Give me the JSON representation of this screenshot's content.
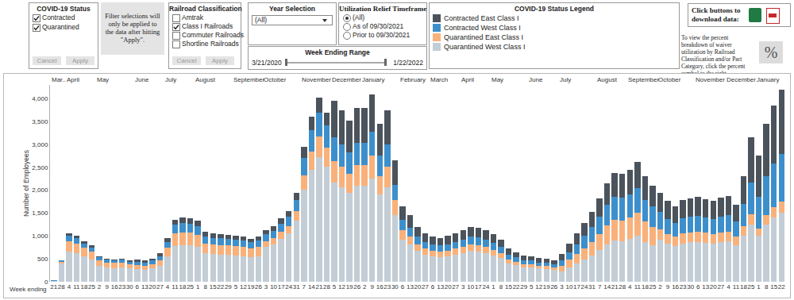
{
  "chart_data": {
    "type": "bar",
    "stacked": true,
    "grid": false,
    "ylabel": "Number of Employees",
    "xlabel": "Week ending",
    "ylim": [
      0,
      4300
    ],
    "yticks": [
      0,
      500,
      {
        "value": 1000,
        "label": "1,000"
      },
      {
        "value": 1500,
        "label": "1,500"
      },
      {
        "value": 2000,
        "label": "2,000"
      },
      {
        "value": 2500,
        "label": "2,500"
      },
      {
        "value": 3000,
        "label": "3,000"
      },
      {
        "value": 3500,
        "label": "3,500"
      },
      {
        "value": 4000,
        "label": "4,000"
      }
    ],
    "month_groups": [
      {
        "label": "Mar..",
        "weeks": 2
      },
      {
        "label": "April",
        "weeks": 4
      },
      {
        "label": "May",
        "weeks": 5
      },
      {
        "label": "June",
        "weeks": 4
      },
      {
        "label": "July",
        "weeks": 4
      },
      {
        "label": "August",
        "weeks": 5
      },
      {
        "label": "September",
        "weeks": 4
      },
      {
        "label": "October",
        "weeks": 5
      },
      {
        "label": "November",
        "weeks": 4
      },
      {
        "label": "December",
        "weeks": 4
      },
      {
        "label": "January",
        "weeks": 5
      },
      {
        "label": "February",
        "weeks": 4
      },
      {
        "label": "March",
        "weeks": 4
      },
      {
        "label": "April",
        "weeks": 4
      },
      {
        "label": "May",
        "weeks": 5
      },
      {
        "label": "June",
        "weeks": 4
      },
      {
        "label": "July",
        "weeks": 5
      },
      {
        "label": "August",
        "weeks": 4
      },
      {
        "label": "September",
        "weeks": 4
      },
      {
        "label": "October",
        "weeks": 5
      },
      {
        "label": "November",
        "weeks": 4
      },
      {
        "label": "December",
        "weeks": 4
      },
      {
        "label": "January",
        "weeks": 4
      }
    ],
    "categories": [
      "21",
      "28",
      "4",
      "11",
      "18",
      "25",
      "2",
      "9",
      "16",
      "23",
      "30",
      "6",
      "13",
      "20",
      "27",
      "4",
      "11",
      "18",
      "25",
      "1",
      "8",
      "15",
      "22",
      "29",
      "5",
      "12",
      "19",
      "26",
      "3",
      "10",
      "17",
      "24",
      "31",
      "7",
      "14",
      "21",
      "28",
      "5",
      "12",
      "19",
      "26",
      "2",
      "9",
      "16",
      "23",
      "30",
      "6",
      "13",
      "20",
      "27",
      "6",
      "13",
      "20",
      "27",
      "3",
      "10",
      "17",
      "24",
      "1",
      "8",
      "15",
      "22",
      "29",
      "5",
      "12",
      "19",
      "26",
      "3",
      "10",
      "17",
      "24",
      "31",
      "7",
      "14",
      "21",
      "28",
      "4",
      "11",
      "18",
      "25",
      "2",
      "9",
      "16",
      "23",
      "30",
      "6",
      "13",
      "20",
      "27",
      "4",
      "11",
      "18",
      "25",
      "1",
      "8",
      "15",
      "22"
    ],
    "series": [
      {
        "name": "Contracted East Class I",
        "color": "#4b535c",
        "values": [
          2,
          10,
          50,
          50,
          40,
          40,
          30,
          20,
          20,
          20,
          30,
          40,
          50,
          50,
          60,
          90,
          120,
          130,
          120,
          110,
          100,
          100,
          90,
          90,
          90,
          80,
          80,
          80,
          90,
          100,
          110,
          120,
          160,
          240,
          280,
          330,
          290,
          800,
          750,
          700,
          760,
          760,
          820,
          690,
          750,
          530,
          300,
          270,
          220,
          180,
          170,
          170,
          180,
          180,
          200,
          210,
          210,
          200,
          190,
          160,
          130,
          110,
          110,
          90,
          100,
          90,
          80,
          130,
          180,
          230,
          280,
          330,
          400,
          470,
          530,
          520,
          540,
          570,
          510,
          460,
          430,
          390,
          360,
          390,
          390,
          420,
          390,
          390,
          410,
          410,
          370,
          600,
          980,
          890,
          1140,
          1260,
          1400
        ]
      },
      {
        "name": "Contracted West Class I",
        "color": "#3d8fcc",
        "values": [
          3,
          20,
          120,
          110,
          100,
          90,
          60,
          60,
          50,
          60,
          50,
          70,
          60,
          70,
          90,
          130,
          190,
          200,
          190,
          190,
          150,
          150,
          150,
          140,
          140,
          140,
          130,
          140,
          150,
          160,
          180,
          200,
          250,
          380,
          470,
          520,
          480,
          510,
          490,
          460,
          490,
          490,
          530,
          450,
          490,
          340,
          230,
          200,
          170,
          150,
          140,
          130,
          140,
          150,
          160,
          170,
          170,
          160,
          150,
          130,
          100,
          90,
          80,
          80,
          70,
          70,
          70,
          130,
          170,
          220,
          270,
          320,
          380,
          450,
          500,
          490,
          510,
          550,
          480,
          440,
          370,
          330,
          310,
          340,
          350,
          350,
          340,
          330,
          350,
          360,
          320,
          480,
          700,
          690,
          860,
          960,
          1050
        ]
      },
      {
        "name": "Quarantined East Class I",
        "color": "#f9b17b",
        "values": [
          5,
          40,
          230,
          220,
          190,
          170,
          120,
          110,
          110,
          110,
          100,
          100,
          90,
          100,
          120,
          190,
          270,
          280,
          280,
          270,
          220,
          210,
          210,
          210,
          200,
          200,
          190,
          200,
          120,
          130,
          150,
          170,
          210,
          320,
          400,
          440,
          410,
          470,
          450,
          420,
          460,
          460,
          490,
          410,
          450,
          320,
          200,
          170,
          140,
          130,
          120,
          120,
          120,
          130,
          130,
          140,
          140,
          130,
          120,
          110,
          90,
          80,
          70,
          70,
          60,
          60,
          60,
          110,
          160,
          200,
          240,
          290,
          350,
          410,
          450,
          450,
          470,
          500,
          440,
          400,
          230,
          210,
          200,
          210,
          220,
          220,
          220,
          210,
          220,
          220,
          200,
          220,
          220,
          170,
          200,
          230,
          250
        ]
      },
      {
        "name": "Quarantined West Class I",
        "color": "#c3cdd6",
        "values": [
          20,
          400,
          660,
          620,
          550,
          490,
          350,
          310,
          300,
          310,
          290,
          270,
          260,
          290,
          350,
          550,
          780,
          800,
          790,
          760,
          620,
          600,
          590,
          590,
          580,
          560,
          540,
          560,
          770,
          820,
          940,
          1050,
          1330,
          2010,
          2450,
          2730,
          2520,
          2170,
          2060,
          1940,
          2090,
          2090,
          2260,
          1900,
          2060,
          1460,
          920,
          810,
          670,
          590,
          550,
          540,
          560,
          590,
          630,
          670,
          660,
          630,
          580,
          520,
          400,
          360,
          320,
          310,
          290,
          280,
          260,
          230,
          320,
          400,
          490,
          580,
          690,
          820,
          900,
          890,
          930,
          1000,
          870,
          800,
          920,
          830,
          780,
          840,
          860,
          870,
          850,
          830,
          860,
          880,
          790,
          1000,
          1250,
          1000,
          1250,
          1400,
          1500
        ]
      }
    ]
  },
  "dashboard": {
    "status_filter": {
      "title": "COVID-19 Status",
      "options": [
        {
          "label": "Contracted",
          "checked": true
        },
        {
          "label": "Quarantined",
          "checked": true
        }
      ],
      "buttons": [
        "Cancel",
        "Apply"
      ]
    },
    "filter_note": "Filter selections will only be applied to the data after hitting \"Apply\".",
    "railroad_filter": {
      "title": "Railroad Classification",
      "options": [
        {
          "label": "Amtrak",
          "checked": false
        },
        {
          "label": "Class I Railroads",
          "checked": true
        },
        {
          "label": "Commuter Railroads",
          "checked": false
        },
        {
          "label": "Shortline Railroads",
          "checked": false
        }
      ],
      "buttons": [
        "Cancel",
        "Apply"
      ]
    },
    "year_selection": {
      "title": "Year Selection",
      "selected": "(All)"
    },
    "timeframe": {
      "title": "Utilization Relief Timeframe",
      "options": [
        {
          "label": "(All)",
          "selected": true
        },
        {
          "label": "As of 09/30/2021",
          "selected": false
        },
        {
          "label": "Prior to 09/30/2021",
          "selected": false
        }
      ]
    },
    "week_range": {
      "title": "Week Ending Range",
      "start": "3/21/2020",
      "end": "1/22/2022"
    },
    "legend_title": "COVID-19 Status Legend",
    "download_text": "Click buttons to download data:",
    "percent_text": "To view the percent breakdown of waiver utilization by Railroad Classification and/or Part Category, click the percent symbol to the right.",
    "percent_button": "%"
  }
}
